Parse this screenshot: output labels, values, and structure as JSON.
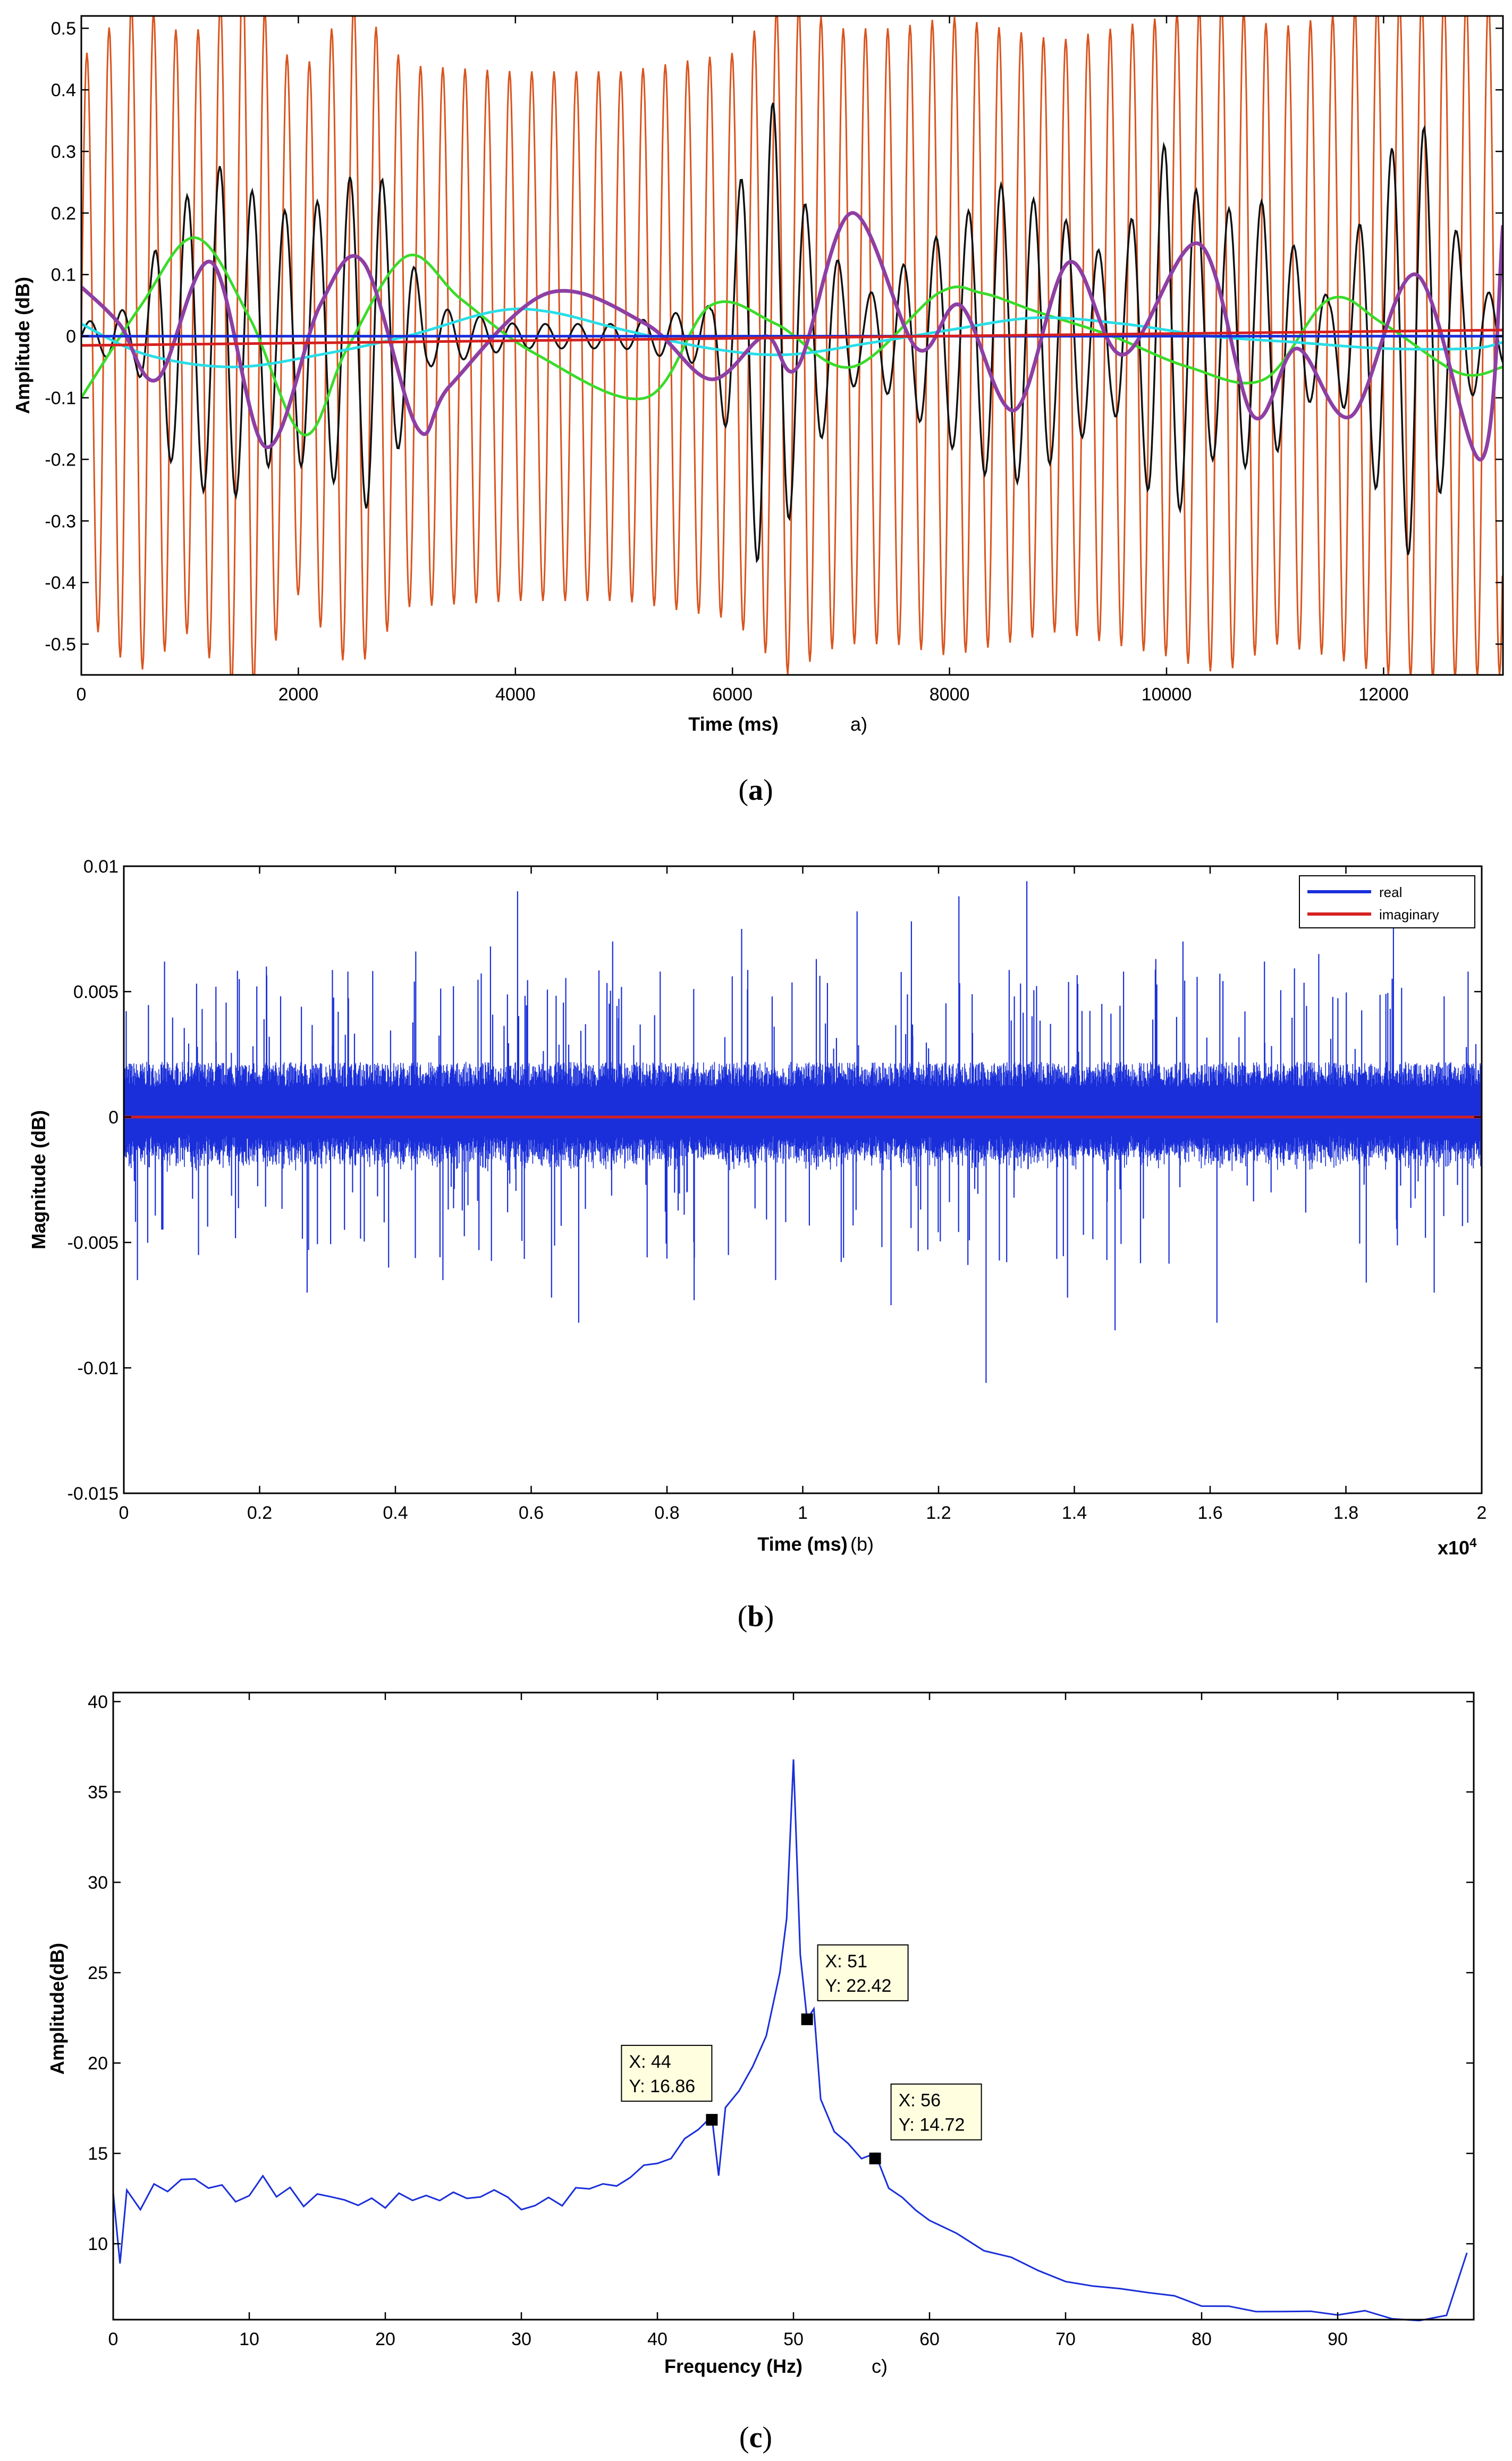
{
  "chart_data": [
    {
      "id": "a",
      "type": "line",
      "xlabel": "Time (ms)",
      "ylabel": "Amplitude (dB)",
      "panel_tag": "a)",
      "caption": "(a)",
      "caption_letter": "a",
      "xlim": [
        0,
        13100
      ],
      "ylim": [
        -0.55,
        0.52
      ],
      "xticks": [
        0,
        2000,
        4000,
        6000,
        8000,
        10000,
        12000
      ],
      "yticks": [
        -0.5,
        -0.4,
        -0.3,
        -0.2,
        -0.1,
        0,
        0.1,
        0.2,
        0.3,
        0.4,
        0.5
      ],
      "grid": false,
      "series": [
        {
          "color": "#d9541e",
          "kind": "carrier",
          "period_ms": 205,
          "envelope_x": [
            0,
            500,
            1000,
            1500,
            2000,
            2500,
            3000,
            4000,
            5000,
            6000,
            6500,
            7000,
            7500,
            8000,
            9000,
            10000,
            10500,
            11000,
            11500,
            12000,
            12500,
            13100
          ],
          "envelope_y": [
            0.45,
            0.55,
            0.48,
            0.6,
            0.42,
            0.55,
            0.44,
            0.43,
            0.43,
            0.46,
            0.55,
            0.5,
            0.5,
            0.52,
            0.48,
            0.52,
            0.55,
            0.5,
            0.52,
            0.55,
            0.56,
            0.55
          ]
        },
        {
          "color": "#111111",
          "kind": "imf",
          "period_ms": 300,
          "envelope_x": [
            0,
            500,
            800,
            1300,
            1800,
            2200,
            2700,
            3200,
            4000,
            5000,
            5800,
            6300,
            6700,
            7200,
            7800,
            8500,
            9000,
            9500,
            10000,
            10400,
            10900,
            11500,
            12000,
            12300,
            12800,
            13100
          ],
          "envelope_y": [
            0.02,
            0.05,
            0.2,
            0.28,
            0.2,
            0.22,
            0.29,
            0.05,
            0.02,
            0.02,
            0.05,
            0.42,
            0.2,
            0.06,
            0.15,
            0.25,
            0.2,
            0.12,
            0.32,
            0.2,
            0.22,
            0.06,
            0.28,
            0.38,
            0.1,
            0.05
          ]
        },
        {
          "color": "#8e3fa3",
          "kind": "points",
          "x": [
            0,
            350,
            700,
            1200,
            1700,
            2200,
            2600,
            3100,
            3400,
            4300,
            5200,
            5800,
            6300,
            6600,
            7100,
            7700,
            8100,
            8600,
            9100,
            9600,
            10300,
            10800,
            11200,
            11700,
            12300,
            12900,
            13100
          ],
          "y": [
            0.08,
            0.02,
            -0.07,
            0.12,
            -0.18,
            0.05,
            0.12,
            -0.15,
            -0.08,
            0.07,
            0.02,
            -0.07,
            0.0,
            -0.05,
            0.2,
            -0.02,
            0.05,
            -0.12,
            0.12,
            -0.03,
            0.15,
            -0.13,
            -0.02,
            -0.13,
            0.1,
            -0.2,
            0.18
          ]
        },
        {
          "color": "#3adb2a",
          "kind": "points",
          "x": [
            0,
            550,
            1050,
            1550,
            2050,
            2450,
            3000,
            3500,
            4200,
            5200,
            5800,
            6400,
            7100,
            7900,
            8300,
            8800,
            9500,
            10200,
            10900,
            11500,
            12000,
            12700,
            13100
          ],
          "y": [
            -0.1,
            0.05,
            0.16,
            0.03,
            -0.16,
            -0.02,
            0.13,
            0.06,
            -0.03,
            -0.1,
            0.05,
            0.02,
            -0.05,
            0.07,
            0.07,
            0.04,
            0.0,
            -0.05,
            -0.07,
            0.06,
            0.02,
            -0.06,
            -0.05
          ]
        },
        {
          "color": "#2adde6",
          "kind": "points",
          "x": [
            0,
            600,
            1400,
            2200,
            3000,
            3800,
            4300,
            5000,
            5800,
            6500,
            7300,
            8000,
            8800,
            9600,
            10400,
            11200,
            12000,
            12800,
            13100
          ],
          "y": [
            0.02,
            -0.03,
            -0.05,
            -0.03,
            0.0,
            0.04,
            0.04,
            0.01,
            -0.02,
            -0.03,
            -0.01,
            0.01,
            0.03,
            0.02,
            0.0,
            -0.01,
            -0.02,
            -0.02,
            -0.01
          ]
        },
        {
          "color": "#1a2fd9",
          "kind": "points",
          "x": [
            0,
            13100
          ],
          "y": [
            0.0,
            0.0
          ]
        },
        {
          "color": "#d62020",
          "kind": "points",
          "x": [
            0,
            13100
          ],
          "y": [
            -0.015,
            0.01
          ]
        }
      ]
    },
    {
      "id": "b",
      "type": "line",
      "xlabel": "Time (ms)",
      "ylabel": "Magnitude (dB)",
      "panel_tag": "(b)",
      "caption": "(b)",
      "caption_letter": "b",
      "xlim": [
        0,
        20000
      ],
      "ylim": [
        -0.015,
        0.01
      ],
      "xticks": [
        0,
        2000,
        4000,
        6000,
        8000,
        10000,
        12000,
        14000,
        16000,
        18000,
        20000
      ],
      "xtick_labels": [
        "0",
        "0.2",
        "0.4",
        "0.6",
        "0.8",
        "1",
        "1.2",
        "1.4",
        "1.6",
        "1.8",
        "2"
      ],
      "xscale_label": "x10",
      "xscale_exponent": "4",
      "yticks": [
        -0.015,
        -0.01,
        -0.005,
        0,
        0.005,
        0.01
      ],
      "ytick_labels": [
        "-0.015",
        "-0.01",
        "-0.005",
        "0",
        "0.005",
        "0.01"
      ],
      "grid": false,
      "legend": {
        "placement": "top-right",
        "entries": [
          {
            "name": "real",
            "color": "#1a2fd9"
          },
          {
            "name": "imaginary",
            "color": "#d62020"
          }
        ]
      },
      "series": [
        {
          "name": "real",
          "color": "#1a2fd9",
          "kind": "noise",
          "band": 0.0022,
          "spike_x": [
            200,
            600,
            1100,
            1700,
            2100,
            2700,
            3300,
            3900,
            4300,
            4700,
            5400,
            5800,
            6300,
            6700,
            7200,
            7900,
            8400,
            9100,
            9600,
            10200,
            10800,
            11300,
            11600,
            12300,
            12700,
            13300,
            13900,
            14600,
            15200,
            15600,
            16100,
            16800,
            17600,
            18300,
            18700,
            19300,
            19800
          ],
          "spike_y": [
            -0.0065,
            0.0062,
            -0.0055,
            0.0055,
            0.006,
            -0.007,
            0.0058,
            -0.006,
            0.0066,
            -0.0065,
            0.0068,
            0.009,
            -0.0072,
            -0.0082,
            0.007,
            0.0058,
            -0.0073,
            0.0075,
            -0.0065,
            0.0063,
            0.0082,
            -0.0075,
            0.0078,
            0.0088,
            -0.0106,
            0.0094,
            -0.0072,
            -0.0085,
            0.0063,
            0.007,
            -0.0082,
            0.0062,
            0.0065,
            -0.0066,
            0.0076,
            -0.007,
            0.0058
          ]
        },
        {
          "name": "imaginary",
          "color": "#d62020",
          "kind": "points",
          "x": [
            0,
            20000
          ],
          "y": [
            0,
            0
          ]
        }
      ]
    },
    {
      "id": "c",
      "type": "line",
      "xlabel": "Frequency (Hz)",
      "ylabel": "Amplitude(dB)",
      "panel_tag": "c)",
      "caption": "(c)",
      "caption_letter": "c",
      "xlim": [
        0,
        100
      ],
      "ylim": [
        5.8,
        40.5
      ],
      "xticks": [
        0,
        10,
        20,
        30,
        40,
        50,
        60,
        70,
        80,
        90
      ],
      "yticks": [
        10,
        15,
        20,
        25,
        30,
        35,
        40
      ],
      "grid": false,
      "series": [
        {
          "color": "#1a2fd9",
          "kind": "points",
          "x": [
            0,
            0.5,
            1,
            2,
            3,
            4,
            5,
            6,
            7,
            8,
            9,
            10,
            11,
            12,
            13,
            14,
            15,
            16,
            17,
            18,
            19,
            20,
            21,
            22,
            23,
            24,
            25,
            26,
            27,
            28,
            29,
            30,
            31,
            32,
            33,
            34,
            35,
            36,
            37,
            38,
            39,
            40,
            41,
            42,
            43,
            44,
            44.5,
            45,
            46,
            47,
            48,
            49,
            49.5,
            50,
            50.5,
            51,
            51.5,
            52,
            53,
            54,
            55,
            56,
            57,
            58,
            59,
            60,
            62,
            64,
            66,
            68,
            70,
            72,
            74,
            76,
            78,
            80,
            82,
            84,
            86,
            88,
            90,
            92,
            94,
            96,
            98,
            99.5
          ],
          "y": [
            12.8,
            9.2,
            13.0,
            12.0,
            13.2,
            12.6,
            13.4,
            13.8,
            13.0,
            13.5,
            12.4,
            12.8,
            13.8,
            12.6,
            13.0,
            12.2,
            12.8,
            12.4,
            12.6,
            12.0,
            12.4,
            12.2,
            12.8,
            12.4,
            12.6,
            12.2,
            12.7,
            12.4,
            12.6,
            12.8,
            12.3,
            12.1,
            12.2,
            12.6,
            12.4,
            12.8,
            13.0,
            13.4,
            13.2,
            13.8,
            14.2,
            14.6,
            15.0,
            15.6,
            16.2,
            16.86,
            14.0,
            17.8,
            18.4,
            19.8,
            21.5,
            25.0,
            28.0,
            36.8,
            26.0,
            22.42,
            23.0,
            18.0,
            16.2,
            15.6,
            15.0,
            14.72,
            13.2,
            12.4,
            11.8,
            11.2,
            10.6,
            9.8,
            9.2,
            8.6,
            8.2,
            7.8,
            7.6,
            7.4,
            7.0,
            6.6,
            6.4,
            6.2,
            6.3,
            6.1,
            6.2,
            6.0,
            6.1,
            6.0,
            6.2,
            9.5
          ]
        },
        {
          "kind": "datatips",
          "points": [
            {
              "x": 44,
              "y": 16.86,
              "label_x": "X: 44",
              "label_y": "Y: 16.86"
            },
            {
              "x": 51,
              "y": 22.42,
              "label_x": "X: 51",
              "label_y": "Y: 22.42"
            },
            {
              "x": 56,
              "y": 14.72,
              "label_x": "X: 56",
              "label_y": "Y: 14.72"
            }
          ]
        }
      ]
    }
  ]
}
